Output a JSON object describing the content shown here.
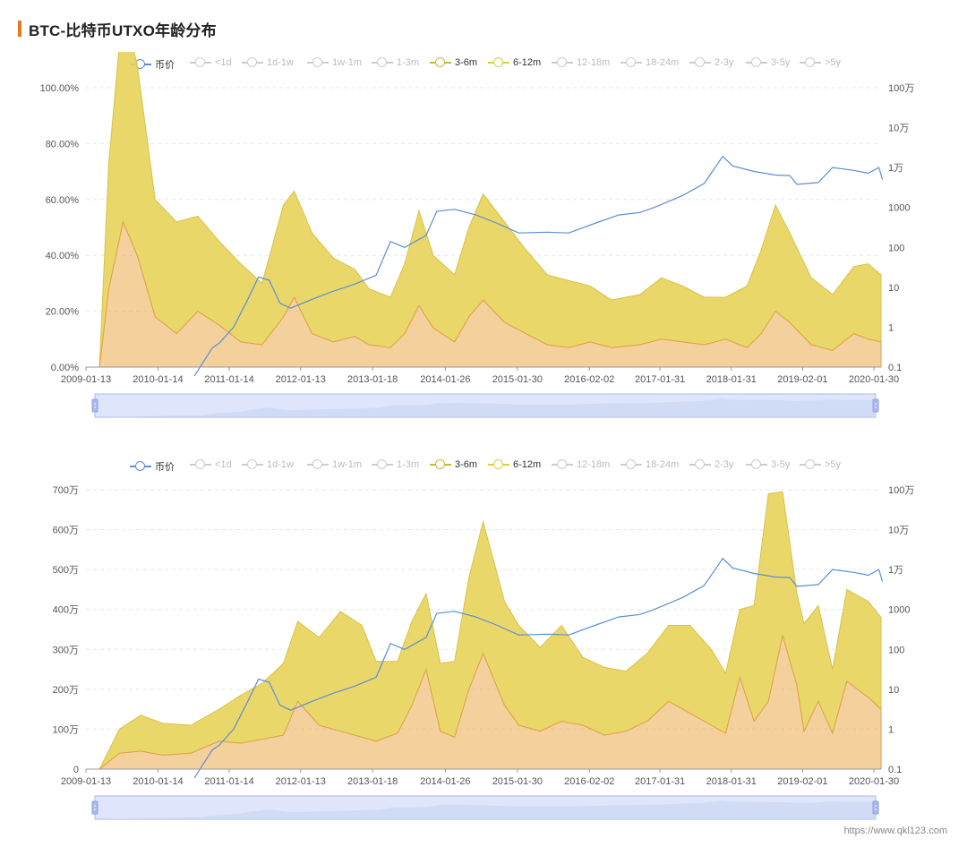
{
  "title": "BTC-比特币UTXO年龄分布",
  "watermark": "https://www.qkl123.com",
  "colors": {
    "accent": "#e8771e",
    "price_line": "#5b8ed6",
    "band_3_6m": "#e9a94a",
    "band_6_12m": "#e8d35a",
    "zoom_fill": "#dfe6fb",
    "zoom_border": "#a9b8ec",
    "legend_off": "#cccccc"
  },
  "legend": [
    {
      "label": "币价",
      "active": true,
      "color": "#5b8ed6"
    },
    {
      "label": "<1d",
      "active": false
    },
    {
      "label": "1d-1w",
      "active": false
    },
    {
      "label": "1w-1m",
      "active": false
    },
    {
      "label": "1-3m",
      "active": false
    },
    {
      "label": "3-6m",
      "active": true,
      "color": "#c8b83a"
    },
    {
      "label": "6-12m",
      "active": true,
      "color": "#d9d23a"
    },
    {
      "label": "12-18m",
      "active": false
    },
    {
      "label": "18-24m",
      "active": false
    },
    {
      "label": "2-3y",
      "active": false
    },
    {
      "label": "3-5y",
      "active": false
    },
    {
      "label": ">5y",
      "active": false
    }
  ],
  "chart_data": [
    {
      "type": "area",
      "stacked": true,
      "x_ticks": [
        "2009-01-13",
        "2010-01-14",
        "2011-01-14",
        "2012-01-13",
        "2013-01-18",
        "2014-01-26",
        "2015-01-30",
        "2016-02-02",
        "2017-01-31",
        "2018-01-31",
        "2019-02-01",
        "2020-01-30"
      ],
      "x_tick_years": [
        2009.03,
        2010.04,
        2011.04,
        2012.04,
        2013.05,
        2014.07,
        2015.08,
        2016.09,
        2017.08,
        2018.08,
        2019.08,
        2020.08
      ],
      "x_range": [
        2009.03,
        2020.18
      ],
      "y_left_ticks": [
        "0.00%",
        "20.00%",
        "40.00%",
        "60.00%",
        "80.00%",
        "100.00%"
      ],
      "y_left_range": [
        0,
        100
      ],
      "y_right_ticks": [
        "0.1",
        "1",
        "10",
        "100",
        "1000",
        "1万",
        "10万",
        "100万"
      ],
      "y_right_log_range": [
        0.1,
        1000000
      ],
      "grid": true,
      "series": [
        {
          "name": "3-6m",
          "x": [
            2009.03,
            2009.22,
            2009.35,
            2009.55,
            2009.75,
            2010.0,
            2010.3,
            2010.6,
            2010.9,
            2011.2,
            2011.5,
            2011.8,
            2011.95,
            2012.2,
            2012.5,
            2012.8,
            2013.0,
            2013.3,
            2013.5,
            2013.7,
            2013.9,
            2014.2,
            2014.4,
            2014.6,
            2014.9,
            2015.2,
            2015.5,
            2015.8,
            2016.1,
            2016.4,
            2016.8,
            2017.1,
            2017.4,
            2017.7,
            2018.0,
            2018.3,
            2018.5,
            2018.7,
            2018.9,
            2019.2,
            2019.5,
            2019.8,
            2020.0,
            2020.18
          ],
          "values": [
            0,
            0,
            28,
            52,
            40,
            18,
            12,
            20,
            15,
            9,
            8,
            18,
            25,
            12,
            9,
            11,
            8,
            7,
            12,
            22,
            14,
            9,
            18,
            24,
            16,
            12,
            8,
            7,
            9,
            7,
            8,
            10,
            9,
            8,
            10,
            7,
            12,
            20,
            16,
            8,
            6,
            12,
            10,
            9
          ]
        },
        {
          "name": "6-12m",
          "x": [
            2009.03,
            2009.22,
            2009.35,
            2009.55,
            2009.75,
            2010.0,
            2010.3,
            2010.6,
            2010.9,
            2011.2,
            2011.5,
            2011.8,
            2011.95,
            2012.2,
            2012.5,
            2012.8,
            2013.0,
            2013.3,
            2013.5,
            2013.7,
            2013.9,
            2014.2,
            2014.4,
            2014.6,
            2014.9,
            2015.2,
            2015.5,
            2015.8,
            2016.1,
            2016.4,
            2016.8,
            2017.1,
            2017.4,
            2017.7,
            2018.0,
            2018.3,
            2018.5,
            2018.7,
            2018.9,
            2019.2,
            2019.5,
            2019.8,
            2020.0,
            2020.18
          ],
          "values": [
            0,
            0,
            45,
            78,
            68,
            42,
            40,
            34,
            30,
            28,
            22,
            40,
            38,
            36,
            30,
            24,
            20,
            18,
            25,
            34,
            26,
            24,
            32,
            38,
            36,
            30,
            25,
            24,
            20,
            17,
            18,
            22,
            20,
            17,
            15,
            22,
            30,
            38,
            32,
            24,
            20,
            24,
            27,
            24
          ]
        },
        {
          "name": "币价",
          "axis": "right",
          "log": true,
          "x": [
            2010.55,
            2010.8,
            2010.9,
            2011.1,
            2011.3,
            2011.45,
            2011.6,
            2011.75,
            2011.9,
            2012.2,
            2012.5,
            2012.8,
            2013.1,
            2013.3,
            2013.5,
            2013.8,
            2013.95,
            2014.2,
            2014.5,
            2014.8,
            2015.1,
            2015.5,
            2015.8,
            2016.2,
            2016.5,
            2016.8,
            2017.0,
            2017.4,
            2017.7,
            2017.96,
            2018.1,
            2018.4,
            2018.7,
            2018.9,
            2019.0,
            2019.3,
            2019.5,
            2019.8,
            2020.0,
            2020.15,
            2020.2
          ],
          "values": [
            0.06,
            0.3,
            0.4,
            1,
            5,
            18,
            15,
            4,
            3,
            5,
            8,
            12,
            20,
            140,
            100,
            200,
            800,
            900,
            650,
            400,
            230,
            240,
            230,
            420,
            650,
            750,
            1000,
            2000,
            4000,
            19000,
            11000,
            8000,
            6500,
            6300,
            3800,
            4200,
            10000,
            8500,
            7200,
            10000,
            5000
          ]
        }
      ]
    },
    {
      "type": "area",
      "stacked": true,
      "x_ticks": [
        "2009-01-13",
        "2010-01-14",
        "2011-01-14",
        "2012-01-13",
        "2013-01-18",
        "2014-01-26",
        "2015-01-30",
        "2016-02-02",
        "2017-01-31",
        "2018-01-31",
        "2019-02-01",
        "2020-01-30"
      ],
      "x_tick_years": [
        2009.03,
        2010.04,
        2011.04,
        2012.04,
        2013.05,
        2014.07,
        2015.08,
        2016.09,
        2017.08,
        2018.08,
        2019.08,
        2020.08
      ],
      "x_range": [
        2009.03,
        2020.18
      ],
      "y_left_ticks": [
        "0",
        "100万",
        "200万",
        "300万",
        "400万",
        "500万",
        "600万",
        "700万"
      ],
      "y_left_range": [
        0,
        700
      ],
      "y_right_ticks": [
        "0.1",
        "1",
        "10",
        "100",
        "1000",
        "1万",
        "10万",
        "100万"
      ],
      "y_right_log_range": [
        0.1,
        1000000
      ],
      "grid": true,
      "series": [
        {
          "name": "3-6m",
          "x": [
            2009.03,
            2009.22,
            2009.5,
            2009.8,
            2010.1,
            2010.5,
            2010.9,
            2011.2,
            2011.5,
            2011.8,
            2012.0,
            2012.3,
            2012.6,
            2012.9,
            2013.1,
            2013.4,
            2013.6,
            2013.8,
            2014.0,
            2014.2,
            2014.4,
            2014.6,
            2014.9,
            2015.1,
            2015.4,
            2015.7,
            2016.0,
            2016.3,
            2016.6,
            2016.9,
            2017.2,
            2017.5,
            2017.8,
            2018.0,
            2018.2,
            2018.4,
            2018.6,
            2018.8,
            2019.0,
            2019.1,
            2019.3,
            2019.5,
            2019.7,
            2020.0,
            2020.18
          ],
          "values": [
            0,
            0,
            40,
            45,
            35,
            40,
            70,
            65,
            75,
            85,
            170,
            110,
            95,
            80,
            70,
            90,
            160,
            250,
            95,
            80,
            200,
            290,
            160,
            110,
            95,
            120,
            110,
            85,
            95,
            120,
            170,
            140,
            110,
            90,
            230,
            120,
            170,
            335,
            210,
            95,
            170,
            90,
            220,
            180,
            150
          ]
        },
        {
          "name": "6-12m",
          "x": [
            2009.03,
            2009.22,
            2009.5,
            2009.8,
            2010.1,
            2010.5,
            2010.9,
            2011.2,
            2011.5,
            2011.8,
            2012.0,
            2012.3,
            2012.6,
            2012.9,
            2013.1,
            2013.4,
            2013.6,
            2013.8,
            2014.0,
            2014.2,
            2014.4,
            2014.6,
            2014.9,
            2015.1,
            2015.4,
            2015.7,
            2016.0,
            2016.3,
            2016.6,
            2016.9,
            2017.2,
            2017.5,
            2017.8,
            2018.0,
            2018.2,
            2018.4,
            2018.6,
            2018.8,
            2019.0,
            2019.1,
            2019.3,
            2019.5,
            2019.7,
            2020.0,
            2020.18
          ],
          "values": [
            0,
            0,
            60,
            90,
            80,
            70,
            80,
            120,
            140,
            180,
            200,
            220,
            300,
            280,
            200,
            180,
            210,
            190,
            170,
            190,
            280,
            330,
            260,
            250,
            210,
            240,
            170,
            170,
            150,
            170,
            190,
            220,
            190,
            150,
            170,
            290,
            520,
            360,
            230,
            270,
            240,
            160,
            230,
            240,
            230
          ]
        },
        {
          "name": "币价",
          "axis": "right",
          "log": true,
          "x": [
            2010.55,
            2010.8,
            2010.9,
            2011.1,
            2011.3,
            2011.45,
            2011.6,
            2011.75,
            2011.9,
            2012.2,
            2012.5,
            2012.8,
            2013.1,
            2013.3,
            2013.5,
            2013.8,
            2013.95,
            2014.2,
            2014.5,
            2014.8,
            2015.1,
            2015.5,
            2015.8,
            2016.2,
            2016.5,
            2016.8,
            2017.0,
            2017.4,
            2017.7,
            2017.96,
            2018.1,
            2018.4,
            2018.7,
            2018.9,
            2019.0,
            2019.3,
            2019.5,
            2019.8,
            2020.0,
            2020.15,
            2020.2
          ],
          "values": [
            0.06,
            0.3,
            0.4,
            1,
            5,
            18,
            15,
            4,
            3,
            5,
            8,
            12,
            20,
            140,
            100,
            200,
            800,
            900,
            650,
            400,
            230,
            240,
            230,
            420,
            650,
            750,
            1000,
            2000,
            4000,
            19000,
            11000,
            8000,
            6500,
            6300,
            3800,
            4200,
            10000,
            8500,
            7200,
            10000,
            5000
          ]
        }
      ]
    }
  ]
}
